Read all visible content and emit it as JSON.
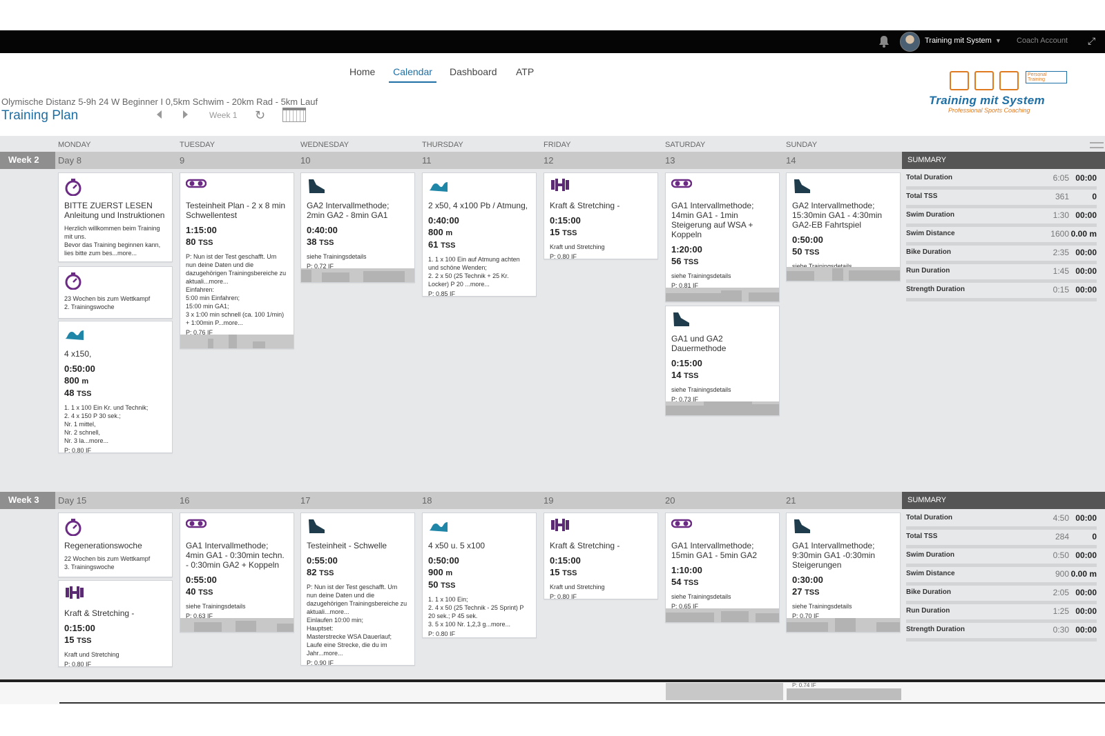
{
  "topbar": {
    "user_name": "Training mit System",
    "coach_link": "Coach Account"
  },
  "nav": {
    "tabs": [
      "Home",
      "Calendar",
      "Dashboard",
      "ATP"
    ],
    "active": "Calendar"
  },
  "plan": {
    "subtitle": "Olymische Distanz 5-9h 24 W Beginner I 0,5km Schwim - 20km Rad - 5km Lauf",
    "title": "Training Plan",
    "week_label": "Week 1"
  },
  "logo": {
    "brand": "Training mit System",
    "tagline": "Professional Sports Coaching",
    "badge": "Personal Training"
  },
  "daynames": [
    "MONDAY",
    "TUESDAY",
    "WEDNESDAY",
    "THURSDAY",
    "FRIDAY",
    "SATURDAY",
    "SUNDAY"
  ],
  "colors": {
    "swim": "#1f86a8",
    "bike": "#6b2a83",
    "run": "#1e3c4c",
    "strength": "#5a2a72",
    "note": "#6b2a83",
    "accent": "#1d6fa5"
  },
  "weeks": [
    {
      "label": "Week 2",
      "days": [
        "Day 8",
        "9",
        "10",
        "11",
        "12",
        "13",
        "14"
      ],
      "summary_title": "SUMMARY",
      "summary": [
        [
          "Total Duration",
          "6:05",
          "00:00"
        ],
        [
          "Total TSS",
          "361",
          "0"
        ],
        [
          "Swim Duration",
          "1:30",
          "00:00"
        ],
        [
          "Swim Distance",
          "1600",
          "0.00 m"
        ],
        [
          "Bike Duration",
          "2:35",
          "00:00"
        ],
        [
          "Run Duration",
          "1:45",
          "00:00"
        ],
        [
          "Strength Duration",
          "0:15",
          "00:00"
        ]
      ],
      "cards": [
        {
          "day": 0,
          "icon": "stopwatch-icon",
          "title": "BITTE ZUERST LESEN\nAnleitung und Instruktionen",
          "desc": "Herzlich willkommen beim Training mit uns.\nBevor das Training beginnen kann, lies bitte zum bes...more..."
        },
        {
          "day": 0,
          "icon": "stopwatch-icon",
          "desc": "23 Wochen bis zum Wettkampf\n2. Trainingswoche"
        },
        {
          "day": 0,
          "icon": "swim-icon",
          "title": "4 x150,",
          "duration": "0:50:00",
          "dist": "800",
          "dist_unit": "m",
          "tss": "48",
          "desc": "1. 1 x 100 Ein Kr. und Technik;\n2. 4 x 150 P 30 sek.;\nNr. 1 mittel,\nNr. 2 schnell,\nNr. 3 la...more...",
          "if": "P: 0.80 IF"
        },
        {
          "day": 1,
          "icon": "bike-icon",
          "title": "Testeinheit Plan - 2 x 8 min Schwellentest",
          "duration": "1:15:00",
          "tss": "80",
          "desc": "P: Nun ist der Test geschafft. Um nun deine Daten und die dazugehörigen Trainingsbereiche zu aktuali...more...\nEinfahren:\n5:00 min Einfahren;\n15:00 min GA1;\n3 x 1:00 min schnell (ca. 100 1/min) + 1:00min P...more...",
          "if": "P: 0.76 IF",
          "bar": true
        },
        {
          "day": 2,
          "icon": "run-icon",
          "title": "GA2 Intervallmethode; 2min GA2 - 8min GA1",
          "duration": "0:40:00",
          "tss": "38",
          "desc": "siehe Trainingsdetails",
          "if": "P: 0.72 IF",
          "bar": true
        },
        {
          "day": 3,
          "icon": "swim-icon",
          "title": "2 x50, 4 x100 Pb / Atmung,",
          "duration": "0:40:00",
          "dist": "800",
          "dist_unit": "m",
          "tss": "61",
          "desc": "1. 1 x 100 Ein auf Atmung achten und schöne Wenden;\n2. 2 x 50 (25 Technik + 25 Kr. Locker) P 20 ...more...",
          "if": "P: 0.85 IF"
        },
        {
          "day": 4,
          "icon": "strength-icon",
          "title": "Kraft & Stretching -",
          "duration": "0:15:00",
          "tss": "15",
          "desc": "Kraft und Stretching",
          "if": "P: 0.80 IF"
        },
        {
          "day": 5,
          "icon": "bike-icon",
          "title": "GA1 Intervallmethode; 14min GA1 - 1min Steigerung auf WSA + Koppeln",
          "duration": "1:20:00",
          "tss": "56",
          "desc": "siehe Trainingsdetails",
          "if": "P: 0.81 IF",
          "bar": true
        },
        {
          "day": 5,
          "icon": "run-icon",
          "title": "GA1 und GA2 Dauermethode",
          "duration": "0:15:00",
          "tss": "14",
          "desc": "siehe Trainingsdetails",
          "if": "P: 0.73 IF",
          "bar": true
        },
        {
          "day": 6,
          "icon": "run-icon",
          "title": "GA2 Intervallmethode; 15:30min GA1 - 4:30min GA2-EB Fahrtspiel",
          "duration": "0:50:00",
          "tss": "50",
          "desc": "siehe Trainingsdetails",
          "if": "P: 0.74 IF",
          "bar": true
        }
      ]
    },
    {
      "label": "Week 3",
      "days": [
        "Day 15",
        "16",
        "17",
        "18",
        "19",
        "20",
        "21"
      ],
      "summary_title": "SUMMARY",
      "summary": [
        [
          "Total Duration",
          "4:50",
          "00:00"
        ],
        [
          "Total TSS",
          "284",
          "0"
        ],
        [
          "Swim Duration",
          "0:50",
          "00:00"
        ],
        [
          "Swim Distance",
          "900",
          "0.00 m"
        ],
        [
          "Bike Duration",
          "2:05",
          "00:00"
        ],
        [
          "Run Duration",
          "1:25",
          "00:00"
        ],
        [
          "Strength Duration",
          "0:30",
          "00:00"
        ]
      ],
      "cards": [
        {
          "day": 0,
          "icon": "stopwatch-icon",
          "title": "Regenerationswoche",
          "desc": "22 Wochen bis zum Wettkampf\n3. Trainingswoche"
        },
        {
          "day": 0,
          "icon": "strength-icon",
          "title": "Kraft & Stretching -",
          "duration": "0:15:00",
          "tss": "15",
          "desc": "Kraft und Stretching",
          "if": "P: 0.80 IF"
        },
        {
          "day": 1,
          "icon": "bike-icon",
          "title": "GA1 Intervallmethode; 4min GA1 - 0:30min techn. - 0:30min GA2 + Koppeln",
          "duration": "0:55:00",
          "tss": "40",
          "desc": "siehe Trainingsdetails",
          "if": "P: 0.63 IF",
          "bar": true
        },
        {
          "day": 2,
          "icon": "run-icon",
          "title": "Testeinheit - Schwelle",
          "duration": "0:55:00",
          "tss": "82",
          "desc": "P: Nun ist der Test geschafft. Um nun deine Daten und die dazugehörigen Trainingsbereiche zu aktuali...more...\nEinlaufen 10:00 min;\nHauptset:\nMasterstrecke WSA Dauerlauf;\nLaufe eine Strecke, die du im Jahr...more...",
          "if": "P: 0.90 IF"
        },
        {
          "day": 3,
          "icon": "swim-icon",
          "title": "4 x50 u. 5 x100",
          "duration": "0:50:00",
          "dist": "900",
          "dist_unit": "m",
          "tss": "50",
          "desc": "1. 1 x 100 Ein;\n2. 4 x 50 (25 Technik - 25 Sprint) P 20 sek.; P 45 sek.\n3. 5 x 100 Nr. 1,2,3 g...more...",
          "if": "P: 0.80 IF"
        },
        {
          "day": 4,
          "icon": "strength-icon",
          "title": "Kraft & Stretching -",
          "duration": "0:15:00",
          "tss": "15",
          "desc": "Kraft und Stretching",
          "if": "P: 0.80 IF"
        },
        {
          "day": 5,
          "icon": "bike-icon",
          "title": "GA1 Intervallmethode; 15min GA1 - 5min GA2",
          "duration": "1:10:00",
          "tss": "54",
          "desc": "siehe Trainingsdetails",
          "if": "P: 0.65 IF",
          "bar": true
        },
        {
          "day": 6,
          "icon": "run-icon",
          "title": "GA1 Intervallmethode; 9:30min GA1 -0:30min Steigerungen",
          "duration": "0:30:00",
          "tss": "27",
          "desc": "siehe Trainingsdetails",
          "if": "P: 0.70 IF",
          "bar": true
        }
      ]
    }
  ],
  "footer": {
    "partial_text": "P: 0.74 IF"
  }
}
